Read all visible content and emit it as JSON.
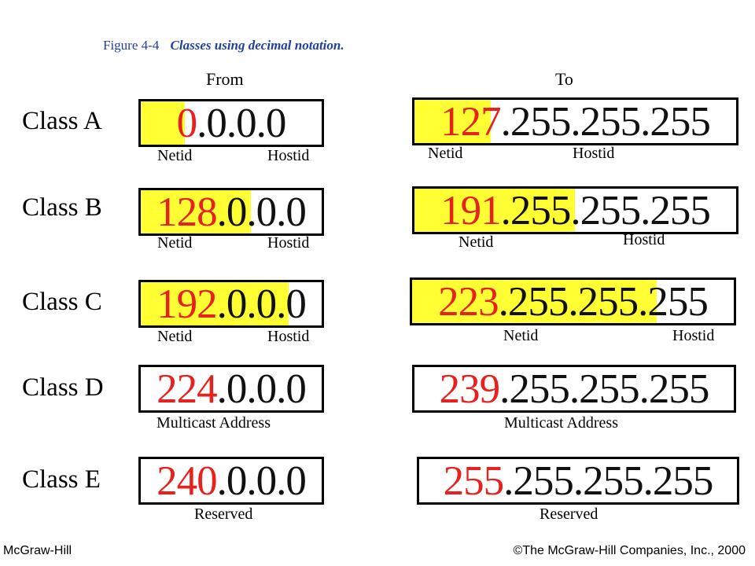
{
  "figure": {
    "number": "Figure  4-4",
    "title": "Classes using decimal notation."
  },
  "headers": {
    "from": "From",
    "to": "To"
  },
  "colors": {
    "highlight": "#ffff33",
    "netid_text": "#e8211e",
    "caption": "#1f3fa6"
  },
  "labels": {
    "netid": "Netid",
    "hostid": "Hostid",
    "multicast": "Multicast Address",
    "reserved": "Reserved"
  },
  "classes": [
    {
      "name": "Class A",
      "from": {
        "net": "0",
        "host": ".0.0.0"
      },
      "to": {
        "net": "127",
        "host": ".255.255.255"
      }
    },
    {
      "name": "Class B",
      "from": {
        "net": "128",
        "host": ".0.0.0"
      },
      "to": {
        "net": "191",
        "host": ".255.255.255"
      }
    },
    {
      "name": "Class C",
      "from": {
        "net": "192",
        "host": ".0.0.0"
      },
      "to": {
        "net": "223",
        "host": ".255.255.255"
      }
    },
    {
      "name": "Class D",
      "from": {
        "net": "224",
        "host": ".0.0.0"
      },
      "to": {
        "net": "239",
        "host": ".255.255.255"
      }
    },
    {
      "name": "Class E",
      "from": {
        "net": "240",
        "host": ".0.0.0"
      },
      "to": {
        "net": "255",
        "host": ".255.255.255"
      }
    }
  ],
  "footer": {
    "left": "McGraw-Hill",
    "right": "©The McGraw-Hill Companies, Inc., 2000"
  }
}
